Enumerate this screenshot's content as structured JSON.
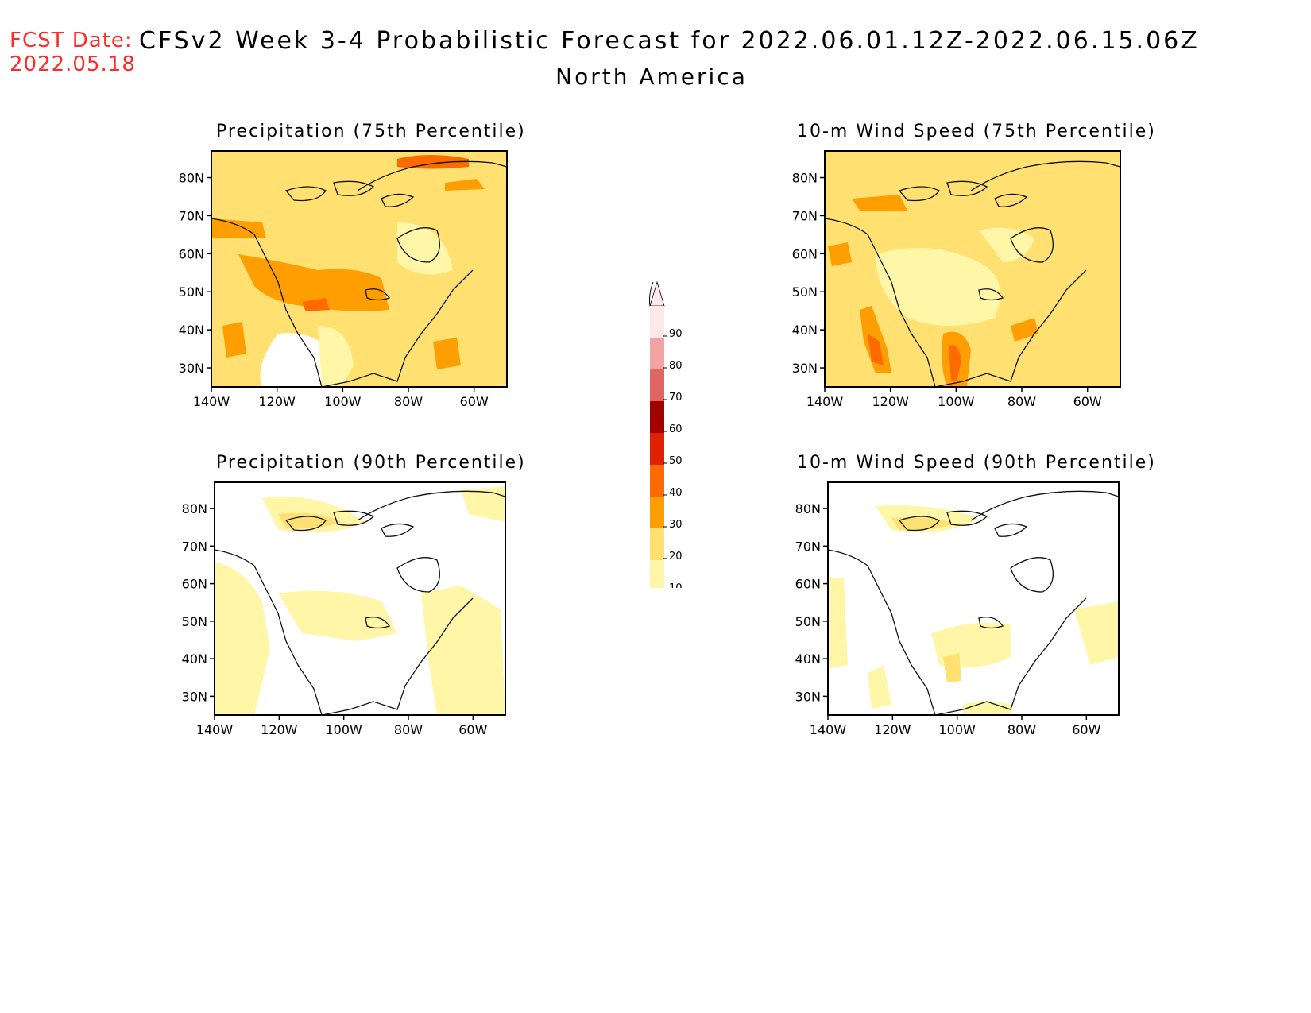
{
  "header": {
    "fcst_label": "FCST Date:",
    "fcst_date": "2022.05.18",
    "title": "CFSv2 Week 3-4 Probabilistic Forecast for 2022.06.01.12Z-2022.06.15.06Z",
    "subtitle": "North America"
  },
  "panels": [
    {
      "title": "Precipitation (75th Percentile)"
    },
    {
      "title": "10-m Wind Speed (75th Percentile)"
    },
    {
      "title": "Precipitation (90th Percentile)"
    },
    {
      "title": "10-m Wind Speed (90th Percentile)"
    }
  ],
  "axes": {
    "lat_ticks": [
      "80N",
      "70N",
      "60N",
      "50N",
      "40N",
      "30N"
    ],
    "lon_ticks": [
      "140W",
      "120W",
      "100W",
      "80W",
      "60W"
    ]
  },
  "colorbar": {
    "ticks": [
      "90",
      "80",
      "70",
      "60",
      "50",
      "40",
      "30",
      "20",
      "10"
    ],
    "colors": [
      "#fde9ea",
      "#f4a3a3",
      "#e06666",
      "#a30000",
      "#e02000",
      "#ff6a00",
      "#ff9e00",
      "#ffe070",
      "#fff6a8"
    ]
  },
  "colors": {
    "fcst": "#ff2a2a",
    "light_yellow": "#fff6a8",
    "yellow": "#ffe070",
    "orange": "#ff9e00",
    "dark_orange": "#ff6a00",
    "red": "#e02000"
  }
}
